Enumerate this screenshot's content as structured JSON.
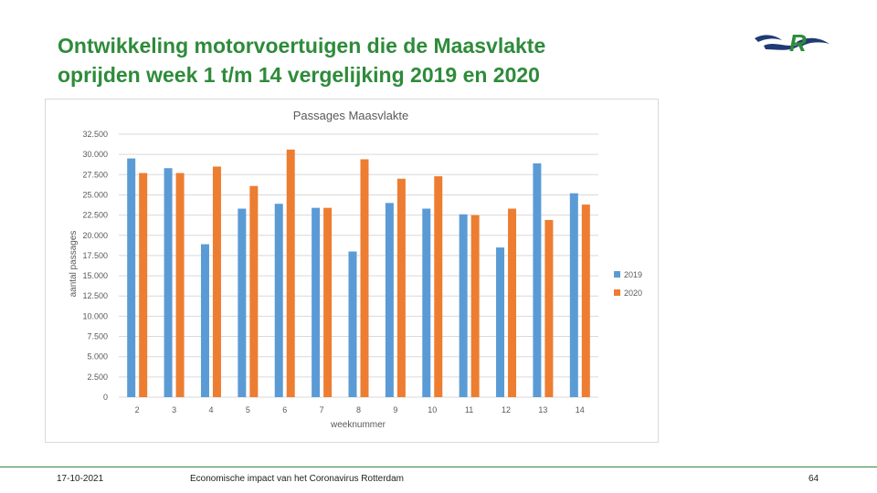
{
  "slide": {
    "title_line1": "Ontwikkeling motorvoertuigen die de Maasvlakte",
    "title_line2": "oprijden week 1 t/m 14 vergelijking 2019 en 2020"
  },
  "footer": {
    "date": "17-10-2021",
    "caption": "Economische impact van het Coronavirus Rotterdam",
    "page_number": "64"
  },
  "colors": {
    "title_green": "#2e8b3a",
    "series_2019": "#5b9bd5",
    "series_2020": "#ed7d31",
    "logo_blue": "#1f3b73",
    "logo_green": "#2e8b3a"
  },
  "chart_data": {
    "type": "bar",
    "title": "Passages Maasvlakte",
    "xlabel": "weeknummer",
    "ylabel": "aantal passages",
    "categories": [
      "2",
      "3",
      "4",
      "5",
      "6",
      "7",
      "8",
      "9",
      "10",
      "11",
      "12",
      "13",
      "14"
    ],
    "series": [
      {
        "name": "2019",
        "color": "#5b9bd5",
        "values": [
          29500,
          28300,
          18900,
          23300,
          23900,
          23400,
          18000,
          24000,
          23300,
          22600,
          18500,
          28900,
          25200
        ]
      },
      {
        "name": "2020",
        "color": "#ed7d31",
        "values": [
          27700,
          27700,
          28500,
          26100,
          30600,
          23400,
          29400,
          27000,
          27300,
          22500,
          23300,
          21900,
          23800
        ]
      }
    ],
    "ylim": [
      0,
      32500
    ],
    "y_ticks": [
      0,
      2500,
      5000,
      7500,
      10000,
      12500,
      15000,
      17500,
      20000,
      22500,
      25000,
      27500,
      30000,
      32500
    ],
    "y_tick_labels": [
      "0",
      "2.500",
      "5.000",
      "7.500",
      "10.000",
      "12.500",
      "15.000",
      "17.500",
      "20.000",
      "22.500",
      "25.000",
      "27.500",
      "30.000",
      "32.500"
    ],
    "grid": true,
    "legend": "right"
  }
}
